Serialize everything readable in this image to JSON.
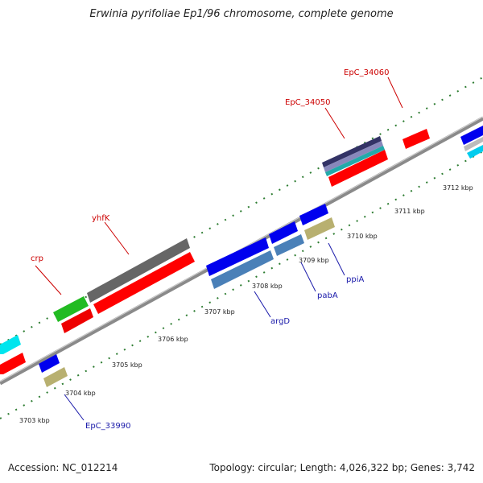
{
  "title": "Erwinia pyrifoliae Ep1/96 chromosome, complete genome",
  "footer": {
    "accession": "Accession: NC_012214",
    "summary": "Topology: circular; Length: 4,026,322 bp; Genes: 3,742"
  },
  "colors": {
    "backbone": "#8a8a8a",
    "tick": "#2e7d32",
    "label_red": "#cc0000",
    "label_blue": "#1a1aaa"
  },
  "scale_labels": [
    "3703 kbp",
    "3704 kbp",
    "3705 kbp",
    "3706 kbp",
    "3707 kbp",
    "3708 kbp",
    "3709 kbp",
    "3710 kbp",
    "3711 kbp",
    "3712 kbp"
  ],
  "gene_labels": {
    "upper": [
      "crp",
      "yhfK",
      "EpC_34050",
      "EpC_34060"
    ],
    "lower": [
      "EpC_33990",
      "argD",
      "pabA",
      "ppiA"
    ]
  },
  "feature_colors": [
    "red",
    "green",
    "dark-gray",
    "blue",
    "steel-blue",
    "khaki",
    "cyan",
    "navy",
    "light-gray"
  ]
}
